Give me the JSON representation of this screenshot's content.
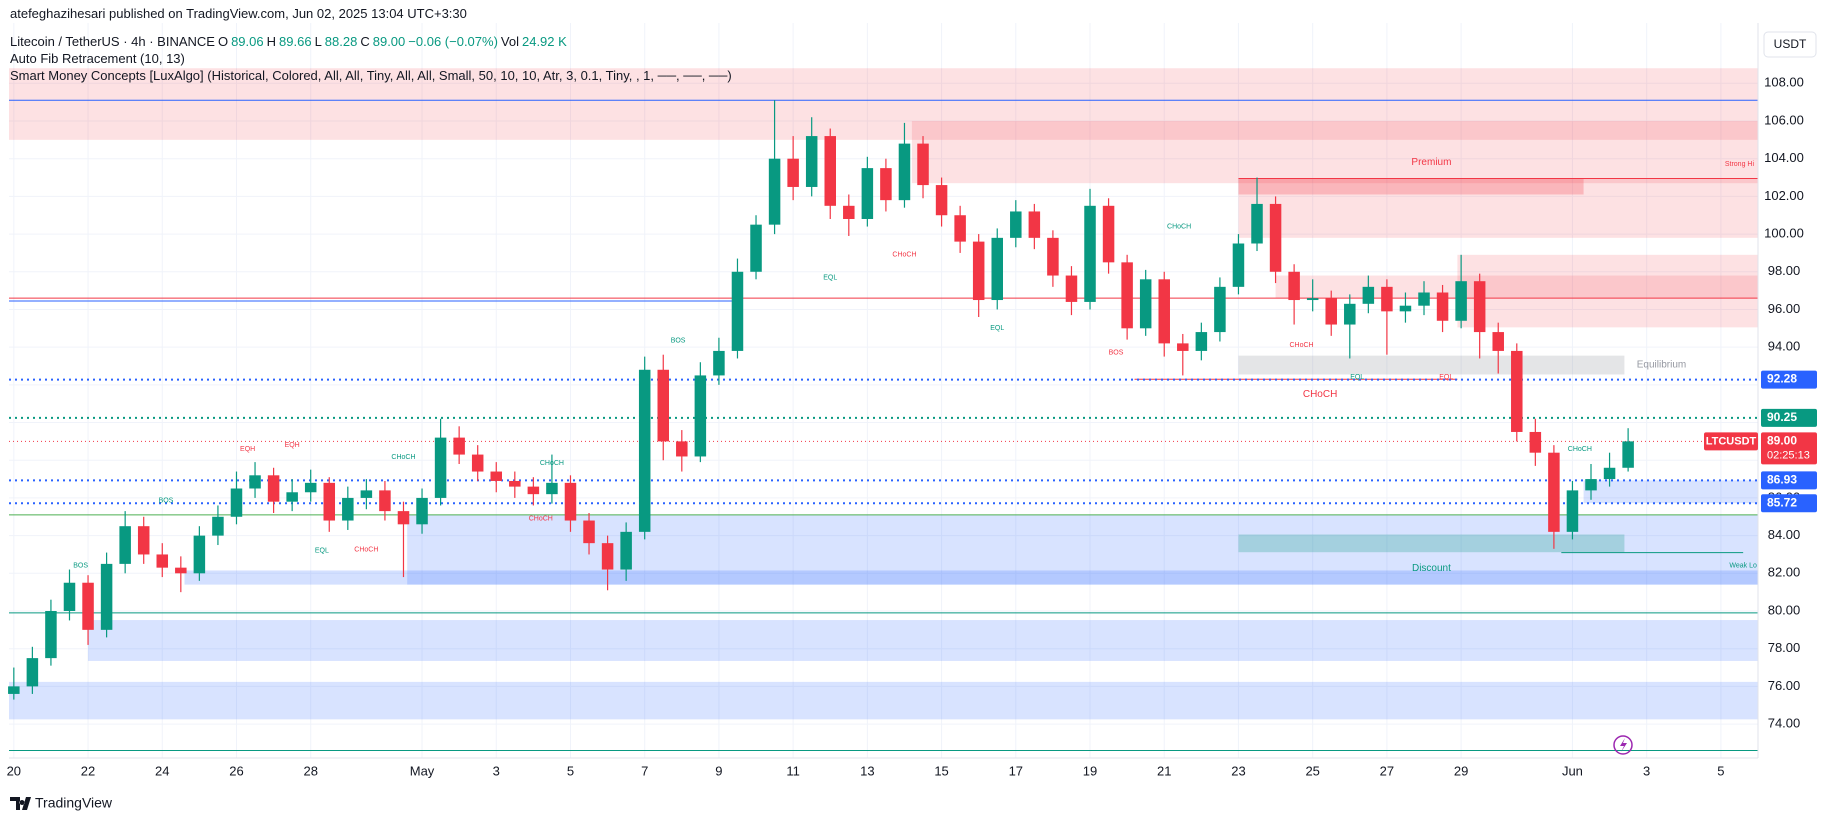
{
  "header": {
    "publisher": "atefeghazihesari published on TradingView.com, Jun 02, 2025 13:04 UTC+3:30"
  },
  "legend": {
    "symbol": "Litecoin / TetherUS · 4h · BINANCE",
    "fields": [
      {
        "key": "O",
        "value": "89.06"
      },
      {
        "key": "H",
        "value": "89.66"
      },
      {
        "key": "L",
        "value": "88.28"
      },
      {
        "key": "C",
        "value": "89.00"
      }
    ],
    "change": "−0.06 (−0.07%)",
    "volume_key": "Vol",
    "volume": "24.92 K"
  },
  "indicators": [
    "Auto Fib Retracement (10, 13)",
    "Smart Money Concepts [LuxAlgo] (Historical, Colored, All, All, Tiny, All, All, Small, 50, 10, 10, Atr, 3, 0.1, Tiny, , 1, ──, ──, ──)"
  ],
  "footer": {
    "brand": "TradingView"
  },
  "chart_data": {
    "type": "candlestick",
    "currency": "USDT",
    "up_color": "#089981",
    "down_color": "#f23645",
    "xlim": [
      -0.13,
      47.0
    ],
    "ylim": [
      72.2,
      111.2
    ],
    "xticks": [
      {
        "value": 0,
        "label": "20"
      },
      {
        "value": 2,
        "label": "22"
      },
      {
        "value": 4,
        "label": "24"
      },
      {
        "value": 6,
        "label": "26"
      },
      {
        "value": 8,
        "label": "28"
      },
      {
        "value": 11,
        "label": "May"
      },
      {
        "value": 13,
        "label": "3"
      },
      {
        "value": 15,
        "label": "5"
      },
      {
        "value": 17,
        "label": "7"
      },
      {
        "value": 19,
        "label": "9"
      },
      {
        "value": 21,
        "label": "11"
      },
      {
        "value": 23,
        "label": "13"
      },
      {
        "value": 25,
        "label": "15"
      },
      {
        "value": 27,
        "label": "17"
      },
      {
        "value": 29,
        "label": "19"
      },
      {
        "value": 31,
        "label": "21"
      },
      {
        "value": 33,
        "label": "23"
      },
      {
        "value": 35,
        "label": "25"
      },
      {
        "value": 37,
        "label": "27"
      },
      {
        "value": 39,
        "label": "29"
      },
      {
        "value": 42,
        "label": "Jun"
      },
      {
        "value": 44,
        "label": "3"
      },
      {
        "value": 46,
        "label": "5"
      }
    ],
    "yticks": [
      {
        "value": 74,
        "label": "74.00"
      },
      {
        "value": 76,
        "label": "76.00"
      },
      {
        "value": 78,
        "label": "78.00"
      },
      {
        "value": 80,
        "label": "80.00"
      },
      {
        "value": 82,
        "label": "82.00"
      },
      {
        "value": 84,
        "label": "84.00"
      },
      {
        "value": 86,
        "label": "86.00"
      },
      {
        "value": 88,
        "label": "88.00"
      },
      {
        "value": 90,
        "label": "90.00"
      },
      {
        "value": 92,
        "label": "92.00"
      },
      {
        "value": 94,
        "label": "94.00"
      },
      {
        "value": 96,
        "label": "96.00"
      },
      {
        "value": 98,
        "label": "98.00"
      },
      {
        "value": 100,
        "label": "100.00"
      },
      {
        "value": 102,
        "label": "102.00"
      },
      {
        "value": 104,
        "label": "104.00"
      },
      {
        "value": 106,
        "label": "106.00"
      },
      {
        "value": 108,
        "label": "108.00"
      }
    ],
    "x": [
      0,
      0.5,
      1,
      1.5,
      2,
      2.5,
      3,
      3.5,
      4,
      4.5,
      5,
      5.5,
      6,
      6.5,
      7,
      7.5,
      8,
      8.5,
      9,
      9.5,
      10,
      10.5,
      11,
      11.5,
      12,
      12.5,
      13,
      13.5,
      14,
      14.5,
      15,
      15.5,
      16,
      16.5,
      17,
      17.5,
      18,
      18.5,
      19,
      19.5,
      20,
      20.5,
      21,
      21.5,
      22,
      22.5,
      23,
      23.5,
      24,
      24.5,
      25,
      25.5,
      26,
      26.5,
      27,
      27.5,
      28,
      28.5,
      29,
      29.5,
      30,
      30.5,
      31,
      31.5,
      32,
      32.5,
      33,
      33.5,
      34,
      34.5,
      35,
      35.5,
      36,
      36.5,
      37,
      37.5,
      38,
      38.5,
      39,
      39.5,
      40,
      40.5,
      41,
      41.5,
      42,
      42.5,
      43,
      43.5
    ],
    "open": [
      75.6,
      76.0,
      77.5,
      80.0,
      81.5,
      79.0,
      82.5,
      84.5,
      83.0,
      82.3,
      82.0,
      84.0,
      85.0,
      86.5,
      87.2,
      85.8,
      86.3,
      86.8,
      84.8,
      86.0,
      86.4,
      85.3,
      84.6,
      86.0,
      89.2,
      88.3,
      87.4,
      86.9,
      86.6,
      86.2,
      86.8,
      84.8,
      83.6,
      82.2,
      84.2,
      92.8,
      89.0,
      88.2,
      92.5,
      93.8,
      98.0,
      100.5,
      104.0,
      102.5,
      105.2,
      101.5,
      100.8,
      103.5,
      101.8,
      104.8,
      102.6,
      101.0,
      99.6,
      96.5,
      99.8,
      101.2,
      99.8,
      97.8,
      96.4,
      101.5,
      98.5,
      95.0,
      97.6,
      94.2,
      93.8,
      94.8,
      97.2,
      99.5,
      101.6,
      98.0,
      96.5,
      96.6,
      95.2,
      96.3,
      97.2,
      95.9,
      96.2,
      96.9,
      95.4,
      97.5,
      94.8,
      93.8,
      89.5,
      88.4,
      84.2,
      86.4,
      87.0,
      87.6
    ],
    "high": [
      77.0,
      78.1,
      80.6,
      82.2,
      81.9,
      83.1,
      85.3,
      85.0,
      83.6,
      82.9,
      84.5,
      85.6,
      87.4,
      87.9,
      87.6,
      87.0,
      87.5,
      87.1,
      86.6,
      87.0,
      86.9,
      85.8,
      86.5,
      90.2,
      89.8,
      88.8,
      87.9,
      87.4,
      87.1,
      88.3,
      87.2,
      85.2,
      84.0,
      84.7,
      93.5,
      93.6,
      89.6,
      93.2,
      94.5,
      98.7,
      101.0,
      107.1,
      105.2,
      106.2,
      105.6,
      102.1,
      104.1,
      104.0,
      105.9,
      105.2,
      103.0,
      101.5,
      100.0,
      100.3,
      101.8,
      101.6,
      100.2,
      98.3,
      102.4,
      101.9,
      98.9,
      98.1,
      98.0,
      94.7,
      95.3,
      97.7,
      100.0,
      103.0,
      102.0,
      98.4,
      97.6,
      97.0,
      96.8,
      97.8,
      97.6,
      96.9,
      97.5,
      97.3,
      98.9,
      97.9,
      95.3,
      94.2,
      90.2,
      88.8,
      86.9,
      87.8,
      88.4,
      89.7
    ],
    "low": [
      75.3,
      75.6,
      77.1,
      79.5,
      78.2,
      78.6,
      82.0,
      82.5,
      81.8,
      81.0,
      81.6,
      83.5,
      84.6,
      86.0,
      85.2,
      85.3,
      85.8,
      84.2,
      84.3,
      85.4,
      84.8,
      81.8,
      84.1,
      85.6,
      87.8,
      86.9,
      86.3,
      86.0,
      85.6,
      85.7,
      84.2,
      83.0,
      81.1,
      81.6,
      83.8,
      88.0,
      87.4,
      87.9,
      92.0,
      93.4,
      97.6,
      100.0,
      101.8,
      102.0,
      100.8,
      99.9,
      100.4,
      101.2,
      101.4,
      101.9,
      100.4,
      99.0,
      95.6,
      96.0,
      99.3,
      99.2,
      97.2,
      95.7,
      96.0,
      97.9,
      94.4,
      94.6,
      93.5,
      92.5,
      93.3,
      94.3,
      96.8,
      99.1,
      97.4,
      95.2,
      95.9,
      94.6,
      93.4,
      95.8,
      93.6,
      95.3,
      95.7,
      94.8,
      95.0,
      93.4,
      92.6,
      89.0,
      87.7,
      83.3,
      83.8,
      85.9,
      86.6,
      87.4
    ],
    "close": [
      76.0,
      77.5,
      80.0,
      81.5,
      79.0,
      82.5,
      84.5,
      83.0,
      82.3,
      82.0,
      84.0,
      85.0,
      86.5,
      87.2,
      85.8,
      86.3,
      86.8,
      84.8,
      86.0,
      86.4,
      85.3,
      84.6,
      86.0,
      89.2,
      88.3,
      87.4,
      86.9,
      86.6,
      86.2,
      86.8,
      84.8,
      83.6,
      82.2,
      84.2,
      92.8,
      89.0,
      88.2,
      92.5,
      93.8,
      98.0,
      100.5,
      104.0,
      102.5,
      105.2,
      101.5,
      100.8,
      103.5,
      101.8,
      104.8,
      102.6,
      101.0,
      99.6,
      96.5,
      99.8,
      101.2,
      99.8,
      97.8,
      96.4,
      101.5,
      98.5,
      95.0,
      97.6,
      94.2,
      93.8,
      94.8,
      97.2,
      99.5,
      101.6,
      98.0,
      96.5,
      96.6,
      95.2,
      96.3,
      97.2,
      95.9,
      96.2,
      96.9,
      95.4,
      97.5,
      94.8,
      93.8,
      89.5,
      88.4,
      84.2,
      86.4,
      87.0,
      87.6,
      89.0
    ],
    "zones": [
      {
        "y": [
          105.0,
          108.8
        ],
        "x": [
          -0.13,
          47.0
        ],
        "color": "rgba(242,54,69,0.15)"
      },
      {
        "y": [
          102.7,
          106.0
        ],
        "x": [
          24.2,
          47.0
        ],
        "color": "rgba(242,54,69,0.15)"
      },
      {
        "y": [
          99.8,
          102.95
        ],
        "x": [
          33.0,
          47.0
        ],
        "color": "rgba(242,54,69,0.15)"
      },
      {
        "y": [
          102.1,
          102.95
        ],
        "x": [
          33.0,
          42.3
        ],
        "color": "rgba(242,54,69,0.25)"
      },
      {
        "y": [
          95.05,
          98.9
        ],
        "x": [
          38.9,
          47.0
        ],
        "color": "rgba(242,54,69,0.15)"
      },
      {
        "y": [
          96.6,
          97.8
        ],
        "x": [
          34.0,
          47.0
        ],
        "color": "rgba(242,54,69,0.15)"
      },
      {
        "y": [
          92.55,
          93.55
        ],
        "x": [
          33.0,
          43.4
        ],
        "color": "rgba(120,123,134,0.2)"
      },
      {
        "y": [
          81.4,
          85.1
        ],
        "x": [
          10.6,
          47.0
        ],
        "color": "rgba(41,98,255,0.18)"
      },
      {
        "y": [
          81.4,
          82.15
        ],
        "x": [
          4.6,
          47.0
        ],
        "color": "rgba(41,98,255,0.2)"
      },
      {
        "y": [
          83.12,
          84.06
        ],
        "x": [
          33.0,
          43.4
        ],
        "color": "rgba(8,153,129,0.25)"
      },
      {
        "y": [
          85.72,
          86.93
        ],
        "x": [
          42.3,
          47.0
        ],
        "color": "rgba(41,98,255,0.18)"
      },
      {
        "y": [
          77.35,
          79.52
        ],
        "x": [
          2.0,
          47.0
        ],
        "color": "rgba(41,98,255,0.18)"
      },
      {
        "y": [
          74.25,
          76.24
        ],
        "x": [
          -0.13,
          47.0
        ],
        "color": "rgba(41,98,255,0.18)"
      }
    ],
    "lines": [
      {
        "value": 107.1,
        "x": [
          -0.13,
          47.0
        ],
        "color": "#2962ff"
      },
      {
        "value": 96.6,
        "x": [
          -0.13,
          47.0
        ],
        "color": "#f23645"
      },
      {
        "value": 96.45,
        "x": [
          -0.13,
          19.5
        ],
        "color": "#2962ff"
      },
      {
        "value": 102.95,
        "x": [
          33.0,
          47.0
        ],
        "color": "#f23645"
      },
      {
        "value": 85.1,
        "x": [
          -0.13,
          47.0
        ],
        "color": "#4caf50"
      },
      {
        "value": 79.9,
        "x": [
          -0.13,
          47.0
        ],
        "color": "#089981"
      },
      {
        "value": 72.6,
        "x": [
          -0.13,
          47.0
        ],
        "color": "#089981"
      },
      {
        "value": 83.1,
        "x": [
          41.7,
          46.6
        ],
        "color": "#089981"
      },
      {
        "value": 92.3,
        "x": [
          30.2,
          38.9
        ],
        "color": "#f23645"
      }
    ],
    "levels": [
      {
        "value": 92.28,
        "color": "#2962ff"
      },
      {
        "value": 90.25,
        "color": "#089981"
      },
      {
        "value": 86.93,
        "color": "#2962ff"
      },
      {
        "value": 85.72,
        "color": "#2962ff"
      }
    ],
    "current": {
      "symbol": "LTCUSDT",
      "value": 89,
      "label": "89.00",
      "countdown": "02:25:13",
      "color": "#f23645"
    },
    "annotations": [
      {
        "text": "Premium",
        "x": 38.2,
        "y": 103.8,
        "color": "#f23645",
        "size": 10
      },
      {
        "text": "Equilibrium",
        "x": 44.4,
        "y": 93.05,
        "color": "#9598a1",
        "size": 10
      },
      {
        "text": "Discount",
        "x": 38.2,
        "y": 82.25,
        "color": "#089981",
        "size": 10
      },
      {
        "text": "CHoCH",
        "x": 35.2,
        "y": 91.5,
        "color": "#f23645",
        "size": 10
      },
      {
        "text": "Strong Hi",
        "x": 46.5,
        "y": 103.7,
        "color": "#f23645",
        "size": 7
      },
      {
        "text": "Weak Lo",
        "x": 46.6,
        "y": 82.4,
        "color": "#089981",
        "size": 7
      },
      {
        "text": "EQH",
        "x": 6.3,
        "y": 88.6,
        "color": "#f23645",
        "size": 7
      },
      {
        "text": "EQH",
        "x": 7.5,
        "y": 88.8,
        "color": "#f23645",
        "size": 7
      },
      {
        "text": "BOS",
        "x": 4.1,
        "y": 85.85,
        "color": "#089981",
        "size": 7
      },
      {
        "text": "BOS",
        "x": 1.8,
        "y": 82.4,
        "color": "#089981",
        "size": 7
      },
      {
        "text": "CHoCH",
        "x": 10.5,
        "y": 88.15,
        "color": "#089981",
        "size": 7
      },
      {
        "text": "CHoCH",
        "x": 14.5,
        "y": 87.85,
        "color": "#089981",
        "size": 7
      },
      {
        "text": "CHoCH",
        "x": 14.2,
        "y": 84.9,
        "color": "#f23645",
        "size": 7
      },
      {
        "text": "CHoCH",
        "x": 9.5,
        "y": 83.25,
        "color": "#f23645",
        "size": 7
      },
      {
        "text": "EQL",
        "x": 8.3,
        "y": 83.2,
        "color": "#089981",
        "size": 7
      },
      {
        "text": "BOS",
        "x": 17.9,
        "y": 94.35,
        "color": "#089981",
        "size": 7
      },
      {
        "text": "EQL",
        "x": 22.0,
        "y": 97.7,
        "color": "#089981",
        "size": 7
      },
      {
        "text": "CHoCH",
        "x": 24.0,
        "y": 98.9,
        "color": "#f23645",
        "size": 7
      },
      {
        "text": "EQL",
        "x": 26.5,
        "y": 95.0,
        "color": "#089981",
        "size": 7
      },
      {
        "text": "CHoCH",
        "x": 31.4,
        "y": 100.4,
        "color": "#089981",
        "size": 7
      },
      {
        "text": "BOS",
        "x": 29.7,
        "y": 93.7,
        "color": "#f23645",
        "size": 7
      },
      {
        "text": "CHoCH",
        "x": 34.7,
        "y": 94.1,
        "color": "#f23645",
        "size": 7
      },
      {
        "text": "EQL",
        "x": 36.2,
        "y": 92.4,
        "color": "#089981",
        "size": 7
      },
      {
        "text": "EQL",
        "x": 38.6,
        "y": 92.4,
        "color": "#f23645",
        "size": 7
      },
      {
        "text": "CHoCH",
        "x": 42.2,
        "y": 88.6,
        "color": "#089981",
        "size": 7
      }
    ]
  }
}
